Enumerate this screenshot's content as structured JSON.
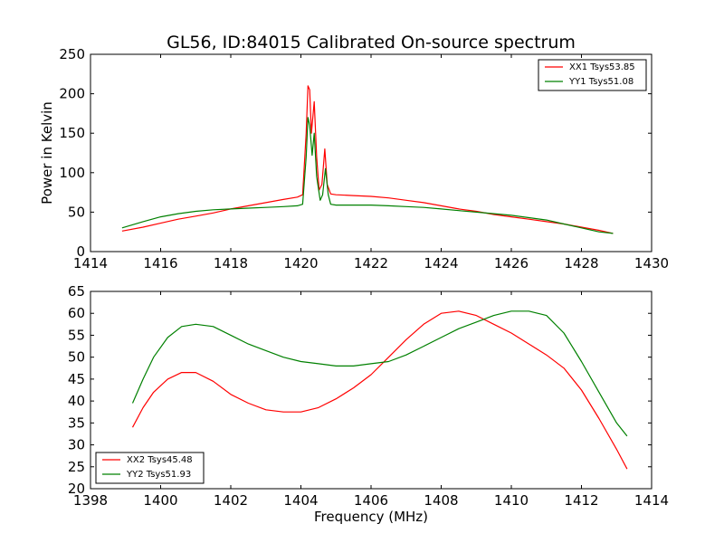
{
  "colors": {
    "xx": "#ff0000",
    "yy": "#008000"
  },
  "chart_data": [
    {
      "type": "line",
      "title": "GL56, ID:84015 Calibrated On-source spectrum",
      "xlabel": "",
      "ylabel": "Power in Kelvin",
      "xlim": [
        1414,
        1430
      ],
      "ylim": [
        0,
        250
      ],
      "xticks": [
        "1414",
        "1416",
        "1418",
        "1420",
        "1422",
        "1424",
        "1426",
        "1428",
        "1430"
      ],
      "yticks": [
        "0",
        "50",
        "100",
        "150",
        "200",
        "250"
      ],
      "legend_position": "top-right",
      "series": [
        {
          "name": "XX1 Tsys53.85",
          "color": "#ff0000",
          "x": [
            1414.9,
            1415.5,
            1416,
            1416.5,
            1417,
            1417.5,
            1418,
            1418.5,
            1419,
            1419.5,
            1419.9,
            1420.05,
            1420.15,
            1420.2,
            1420.25,
            1420.3,
            1420.38,
            1420.45,
            1420.52,
            1420.6,
            1420.68,
            1420.75,
            1420.85,
            1421,
            1421.5,
            1422,
            1422.5,
            1423,
            1423.5,
            1424,
            1424.5,
            1425,
            1425.5,
            1426,
            1426.5,
            1427,
            1427.5,
            1428,
            1428.5,
            1428.9
          ],
          "values": [
            26,
            31,
            36,
            41,
            45,
            49,
            54,
            58,
            62,
            66,
            69,
            72,
            150,
            210,
            205,
            150,
            190,
            120,
            78,
            85,
            130,
            85,
            73,
            72,
            71,
            70,
            68,
            65,
            62,
            58,
            54,
            51,
            47,
            44,
            41,
            38,
            35,
            31,
            27,
            23
          ]
        },
        {
          "name": "YY1 Tsys51.08",
          "color": "#008000",
          "x": [
            1414.9,
            1415.5,
            1416,
            1416.5,
            1417,
            1417.5,
            1418,
            1418.5,
            1419,
            1419.5,
            1419.9,
            1420.05,
            1420.15,
            1420.2,
            1420.25,
            1420.32,
            1420.38,
            1420.45,
            1420.55,
            1420.62,
            1420.7,
            1420.78,
            1420.85,
            1421,
            1421.5,
            1422,
            1422.5,
            1423,
            1423.5,
            1424,
            1424.5,
            1425,
            1425.5,
            1426,
            1426.5,
            1427,
            1427.5,
            1428,
            1428.5,
            1428.9
          ],
          "values": [
            30,
            38,
            44,
            48,
            51,
            53,
            54,
            55,
            56,
            57,
            58,
            60,
            120,
            170,
            160,
            122,
            150,
            95,
            65,
            72,
            105,
            72,
            60,
            59,
            59,
            59,
            58,
            57,
            56,
            54,
            52,
            50,
            48,
            46,
            43,
            40,
            35,
            30,
            25,
            23
          ]
        }
      ]
    },
    {
      "type": "line",
      "title": "",
      "xlabel": "Frequency (MHz)",
      "ylabel": "",
      "xlim": [
        1398,
        1414
      ],
      "ylim": [
        20,
        65
      ],
      "xticks": [
        "1398",
        "1400",
        "1402",
        "1404",
        "1406",
        "1408",
        "1410",
        "1412",
        "1414"
      ],
      "yticks": [
        "20",
        "25",
        "30",
        "35",
        "40",
        "45",
        "50",
        "55",
        "60",
        "65"
      ],
      "legend_position": "bottom-left",
      "series": [
        {
          "name": "XX2 Tsys45.48",
          "color": "#ff0000",
          "x": [
            1399.2,
            1399.5,
            1399.8,
            1400.2,
            1400.6,
            1401,
            1401.5,
            1402,
            1402.5,
            1403,
            1403.5,
            1404,
            1404.5,
            1405,
            1405.5,
            1406,
            1406.5,
            1407,
            1407.5,
            1408,
            1408.5,
            1409,
            1409.5,
            1410,
            1410.5,
            1411,
            1411.5,
            1412,
            1412.5,
            1413,
            1413.3
          ],
          "values": [
            34,
            38.5,
            42,
            45,
            46.5,
            46.5,
            44.5,
            41.5,
            39.5,
            38,
            37.5,
            37.5,
            38.5,
            40.5,
            43,
            46,
            50,
            54,
            57.5,
            60,
            60.5,
            59.5,
            57.5,
            55.5,
            53,
            50.5,
            47.5,
            42.5,
            36,
            29,
            24.5
          ]
        },
        {
          "name": "YY2 Tsys51.93",
          "color": "#008000",
          "x": [
            1399.2,
            1399.5,
            1399.8,
            1400.2,
            1400.6,
            1401,
            1401.5,
            1402,
            1402.5,
            1403,
            1403.5,
            1404,
            1404.5,
            1405,
            1405.5,
            1406,
            1406.5,
            1407,
            1407.5,
            1408,
            1408.5,
            1409,
            1409.5,
            1410,
            1410.5,
            1411,
            1411.5,
            1412,
            1412.5,
            1413,
            1413.3
          ],
          "values": [
            39.5,
            45,
            50,
            54.5,
            57,
            57.5,
            57,
            55,
            53,
            51.5,
            50,
            49,
            48.5,
            48,
            48,
            48.5,
            49,
            50.5,
            52.5,
            54.5,
            56.5,
            58,
            59.5,
            60.5,
            60.5,
            59.5,
            55.5,
            49,
            42,
            35,
            32
          ]
        }
      ]
    }
  ]
}
